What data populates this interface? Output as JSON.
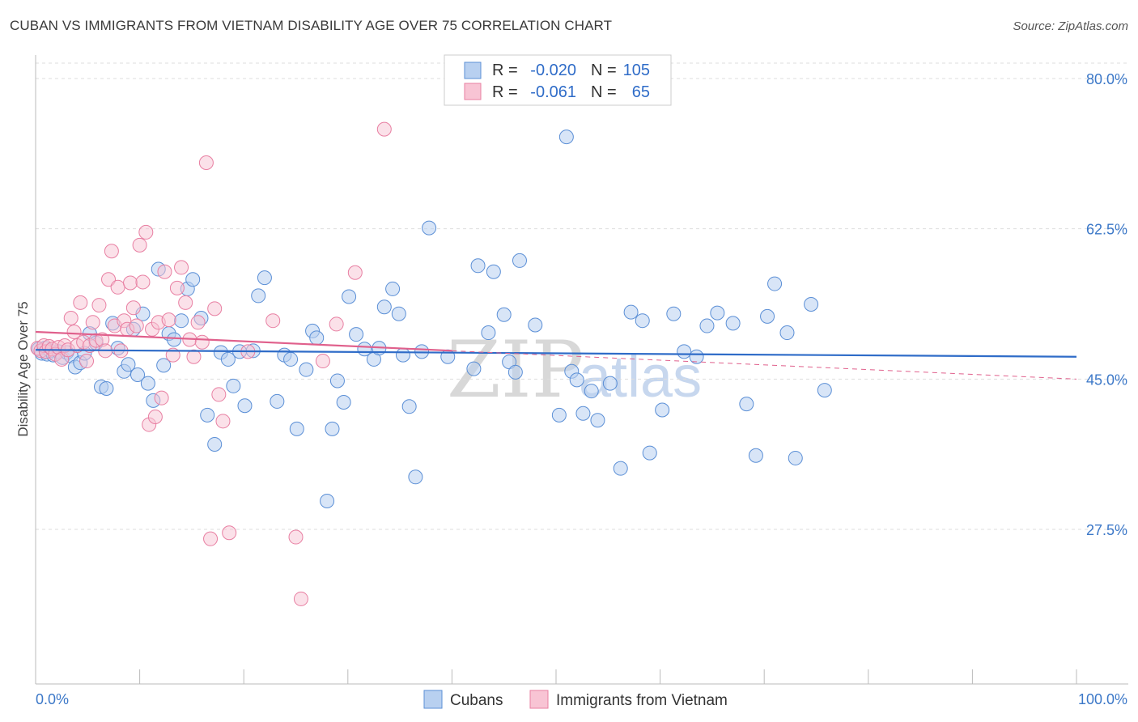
{
  "title": "CUBAN VS IMMIGRANTS FROM VIETNAM DISABILITY AGE OVER 75 CORRELATION CHART",
  "source": "Source: ZipAtlas.com",
  "watermark": {
    "zip": "ZIP",
    "atlas": "atlas"
  },
  "legend": {
    "r_label": "R =",
    "n_label": "N =",
    "rows": [
      {
        "r": "-0.020",
        "n": "105"
      },
      {
        "r": "-0.061",
        "n": "65"
      }
    ]
  },
  "bottom_legend": [
    "Cubans",
    "Immigrants from Vietnam"
  ],
  "colors": {
    "blue_fill": "#b8d0f0",
    "blue_stroke": "#5b8fd6",
    "blue_line": "#2f6cc8",
    "pink_fill": "#f8c4d4",
    "pink_stroke": "#e87fa2",
    "pink_line": "#e0608c",
    "tick_text": "#3c78c8",
    "grid": "#dddddd"
  },
  "chart_data": {
    "type": "scatter",
    "title": "CUBAN VS IMMIGRANTS FROM VIETNAM DISABILITY AGE OVER 75 CORRELATION CHART",
    "xlabel": "",
    "ylabel": "Disability Age Over 75",
    "x_tick_labels": [
      "0.0%",
      "100.0%"
    ],
    "y_tick_labels": [
      "80.0%",
      "62.5%",
      "45.0%",
      "27.5%"
    ],
    "y_ticks": [
      80.0,
      62.5,
      45.0,
      27.5
    ],
    "xlim": [
      0,
      100
    ],
    "ylim": [
      10,
      82
    ],
    "grid": "horizontal dashed",
    "series": [
      {
        "name": "Cubans",
        "r": -0.02,
        "n": 105,
        "trend": {
          "x0": 0,
          "y0": 48.4,
          "x1": 100,
          "y1": 47.6
        },
        "points": [
          [
            0.3,
            48.5
          ],
          [
            0.6,
            48.0
          ],
          [
            0.9,
            48.6
          ],
          [
            1.1,
            47.9
          ],
          [
            1.4,
            48.3
          ],
          [
            1.7,
            47.8
          ],
          [
            2.2,
            48.2
          ],
          [
            2.6,
            47.5
          ],
          [
            3.0,
            48.1
          ],
          [
            3.4,
            47.7
          ],
          [
            3.8,
            46.4
          ],
          [
            4.3,
            46.9
          ],
          [
            4.7,
            48.0
          ],
          [
            5.2,
            50.3
          ],
          [
            5.8,
            49.2
          ],
          [
            6.3,
            44.1
          ],
          [
            6.8,
            43.9
          ],
          [
            7.4,
            51.5
          ],
          [
            7.9,
            48.6
          ],
          [
            8.5,
            45.9
          ],
          [
            8.9,
            46.7
          ],
          [
            9.4,
            50.8
          ],
          [
            9.8,
            45.5
          ],
          [
            10.3,
            52.6
          ],
          [
            10.8,
            44.5
          ],
          [
            11.3,
            42.5
          ],
          [
            11.8,
            57.8
          ],
          [
            12.3,
            46.6
          ],
          [
            12.8,
            50.3
          ],
          [
            13.3,
            49.6
          ],
          [
            14.0,
            51.8
          ],
          [
            14.6,
            55.5
          ],
          [
            15.1,
            56.6
          ],
          [
            15.9,
            52.1
          ],
          [
            16.5,
            40.8
          ],
          [
            17.2,
            37.4
          ],
          [
            17.8,
            48.1
          ],
          [
            18.5,
            47.3
          ],
          [
            19.0,
            44.2
          ],
          [
            19.6,
            48.2
          ],
          [
            20.1,
            41.9
          ],
          [
            20.9,
            48.3
          ],
          [
            21.4,
            54.7
          ],
          [
            22.0,
            56.8
          ],
          [
            23.2,
            42.4
          ],
          [
            23.9,
            47.8
          ],
          [
            24.5,
            47.3
          ],
          [
            25.1,
            39.2
          ],
          [
            26.0,
            46.1
          ],
          [
            26.6,
            50.6
          ],
          [
            27.0,
            49.8
          ],
          [
            28.0,
            30.8
          ],
          [
            28.5,
            39.2
          ],
          [
            29.0,
            44.8
          ],
          [
            29.6,
            42.3
          ],
          [
            30.1,
            54.6
          ],
          [
            30.8,
            50.2
          ],
          [
            31.6,
            48.5
          ],
          [
            32.5,
            47.3
          ],
          [
            33.0,
            48.6
          ],
          [
            33.5,
            53.4
          ],
          [
            34.3,
            55.5
          ],
          [
            34.9,
            52.6
          ],
          [
            35.3,
            47.8
          ],
          [
            35.9,
            41.8
          ],
          [
            36.5,
            33.6
          ],
          [
            37.1,
            48.2
          ],
          [
            37.8,
            62.6
          ],
          [
            39.6,
            47.6
          ],
          [
            42.1,
            46.2
          ],
          [
            42.5,
            58.2
          ],
          [
            43.5,
            50.4
          ],
          [
            44.0,
            57.5
          ],
          [
            45.0,
            52.5
          ],
          [
            45.5,
            47.0
          ],
          [
            46.1,
            45.8
          ],
          [
            46.5,
            58.8
          ],
          [
            48.0,
            51.3
          ],
          [
            50.3,
            40.8
          ],
          [
            51.0,
            73.2
          ],
          [
            51.5,
            45.9
          ],
          [
            52.0,
            44.9
          ],
          [
            52.6,
            41.0
          ],
          [
            53.4,
            43.6
          ],
          [
            54.0,
            40.2
          ],
          [
            55.2,
            44.5
          ],
          [
            56.2,
            34.6
          ],
          [
            57.2,
            52.8
          ],
          [
            58.3,
            51.8
          ],
          [
            59.0,
            36.4
          ],
          [
            60.2,
            41.4
          ],
          [
            61.3,
            52.6
          ],
          [
            62.3,
            48.2
          ],
          [
            63.5,
            47.6
          ],
          [
            64.5,
            51.2
          ],
          [
            65.5,
            52.7
          ],
          [
            67.0,
            51.5
          ],
          [
            68.3,
            42.1
          ],
          [
            69.2,
            36.1
          ],
          [
            70.3,
            52.3
          ],
          [
            71.0,
            56.1
          ],
          [
            72.2,
            50.4
          ],
          [
            73.0,
            35.8
          ],
          [
            74.5,
            53.7
          ],
          [
            75.8,
            43.7
          ]
        ]
      },
      {
        "name": "Immigrants from Vietnam",
        "r": -0.061,
        "n": 65,
        "trend": {
          "x0": 0,
          "y0": 50.5,
          "x1": 100,
          "y1": 45.0
        },
        "points": [
          [
            0.2,
            48.6
          ],
          [
            0.5,
            48.3
          ],
          [
            0.8,
            48.9
          ],
          [
            1.0,
            48.2
          ],
          [
            1.3,
            48.8
          ],
          [
            1.6,
            48.5
          ],
          [
            1.9,
            47.9
          ],
          [
            2.2,
            48.7
          ],
          [
            2.5,
            47.3
          ],
          [
            2.8,
            48.9
          ],
          [
            3.1,
            48.4
          ],
          [
            3.4,
            52.1
          ],
          [
            3.7,
            50.5
          ],
          [
            4.0,
            48.9
          ],
          [
            4.3,
            53.9
          ],
          [
            4.6,
            49.3
          ],
          [
            4.9,
            47.1
          ],
          [
            5.2,
            48.9
          ],
          [
            5.5,
            51.6
          ],
          [
            5.8,
            49.5
          ],
          [
            6.1,
            53.6
          ],
          [
            6.4,
            49.6
          ],
          [
            6.7,
            48.3
          ],
          [
            7.0,
            56.6
          ],
          [
            7.3,
            59.9
          ],
          [
            7.6,
            51.2
          ],
          [
            7.9,
            55.7
          ],
          [
            8.2,
            48.3
          ],
          [
            8.5,
            51.8
          ],
          [
            8.8,
            50.8
          ],
          [
            9.1,
            56.2
          ],
          [
            9.4,
            53.3
          ],
          [
            9.7,
            51.2
          ],
          [
            10.0,
            60.6
          ],
          [
            10.3,
            56.3
          ],
          [
            10.6,
            62.1
          ],
          [
            10.9,
            39.7
          ],
          [
            11.2,
            50.8
          ],
          [
            11.5,
            40.6
          ],
          [
            11.8,
            51.6
          ],
          [
            12.1,
            42.8
          ],
          [
            12.4,
            57.5
          ],
          [
            12.8,
            51.9
          ],
          [
            13.2,
            47.8
          ],
          [
            13.6,
            55.6
          ],
          [
            14.0,
            58.0
          ],
          [
            14.4,
            53.9
          ],
          [
            14.8,
            49.6
          ],
          [
            15.2,
            47.6
          ],
          [
            15.6,
            51.6
          ],
          [
            16.0,
            49.3
          ],
          [
            16.4,
            70.2
          ],
          [
            16.8,
            26.4
          ],
          [
            17.2,
            53.2
          ],
          [
            17.6,
            43.2
          ],
          [
            18.0,
            40.1
          ],
          [
            18.6,
            27.1
          ],
          [
            20.4,
            48.2
          ],
          [
            22.8,
            51.8
          ],
          [
            25.0,
            26.6
          ],
          [
            25.5,
            19.4
          ],
          [
            27.6,
            47.1
          ],
          [
            28.9,
            51.4
          ],
          [
            30.7,
            57.4
          ],
          [
            33.5,
            74.1
          ]
        ]
      }
    ]
  }
}
